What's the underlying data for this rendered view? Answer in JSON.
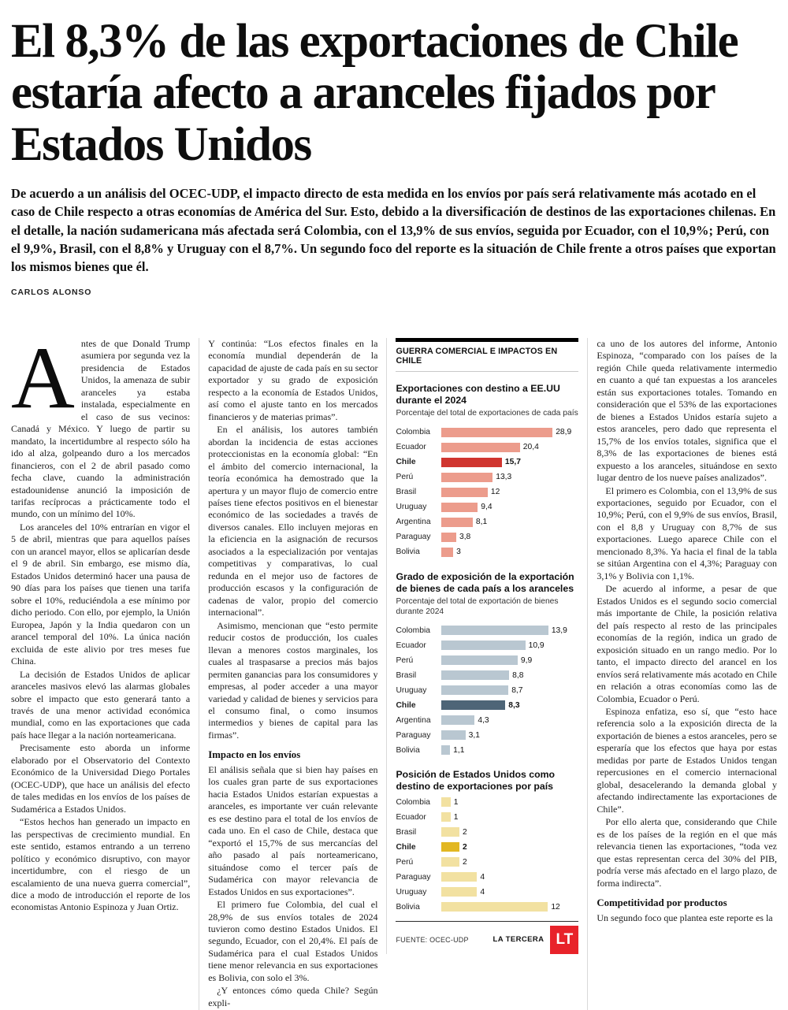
{
  "article": {
    "headline": "El 8,3% de las exportaciones de Chile estaría afecto a aranceles fijados por Estados Unidos",
    "lede": "De acuerdo a un análisis del OCEC-UDP, el impacto directo de esta medida en los envíos por país será relativamente más acotado en el caso de Chile respecto a otras economías de América del Sur. Esto, debido a la diversificación de destinos de las exportaciones chilenas. En el detalle, la nación sudamericana más afectada será Colombia, con el 13,9% de sus envíos, seguida por Ecuador, con el 10,9%; Perú, con el 9,9%, Brasil, con el 8,8% y Uruguay con el 8,7%. Un segundo foco del reporte es la situación de Chile frente a otros países que exportan los mismos bienes que él.",
    "byline": "CARLOS ALONSO",
    "col1": {
      "drop_cap": "A",
      "paragraphs": [
        "ntes de que Donald Trump asumiera por segunda vez la presidencia de Estados Unidos, la amenaza de subir aranceles ya estaba instalada, especialmente en el caso de sus vecinos: Canadá y México. Y luego de partir su mandato, la incertidumbre al respecto sólo ha ido al alza, golpeando duro a los mercados financieros, con el 2 de abril pasado como fecha clave, cuando la administración estadounidense anunció la imposición de tarifas recíprocas a prácticamente todo el mundo, con un mínimo del 10%.",
        "Los aranceles del 10% entrarían en vigor el 5 de abril, mientras que para aquellos países con un arancel mayor, ellos se aplicarían desde el 9 de abril. Sin embargo, ese mismo día, Estados Unidos determinó hacer una pausa de 90 días para los países que tienen una tarifa sobre el 10%, reduciéndola a ese mínimo por dicho periodo. Con ello, por ejemplo, la Unión Europea, Japón y la India quedaron con un arancel temporal del 10%. La única nación excluida de este alivio por tres meses fue China.",
        "La decisión de Estados Unidos de aplicar aranceles masivos elevó las alarmas globales sobre el impacto que esto generará tanto a través de una menor actividad económica mundial, como en las exportaciones que cada país hace llegar a la nación norteamericana.",
        "Precisamente esto aborda un informe elaborado por el Observatorio del Contexto Económico de la Universidad Diego Portales (OCEC-UDP), que hace un análisis del efecto de tales medidas en los envíos de los países de Sudamérica a Estados Unidos.",
        "“Estos hechos han generado un impacto en las perspectivas de crecimiento mundial. En este sentido, estamos entrando a un terreno político y económico disruptivo, con mayor incertidumbre, con el riesgo de un escalamiento de una nueva guerra comercial”, dice a modo de introducción el reporte de los economistas Antonio Espinoza y Juan Ortiz."
      ]
    },
    "col2": {
      "subhead": "Impacto en los envíos",
      "paragraphs": [
        "Y continúa: “Los efectos finales en la economía mundial dependerán de la capacidad de ajuste de cada país en su sector exportador y su grado de exposición respecto a la economía de Estados Unidos, así como el ajuste tanto en los mercados financieros y de materias primas”.",
        "En el análisis, los autores también abordan la incidencia de estas acciones proteccionistas en la economía global: “En el ámbito del comercio internacional, la teoría económica ha demostrado que la apertura y un mayor flujo de comercio entre países tiene efectos positivos en el bienestar económico de las sociedades a través de diversos canales. Ello incluyen mejoras en la eficiencia en la asignación de recursos asociados a la especialización por ventajas competitivas y comparativas, lo cual redunda en el mejor uso de factores de producción escasos y la configuración de cadenas de valor, propio del comercio internacional”.",
        "Asimismo, mencionan que “esto permite reducir costos de producción, los cuales llevan a menores costos marginales, los cuales al traspasarse a precios más bajos permiten ganancias para los consumidores y empresas, al poder acceder a una mayor variedad y calidad de bienes y servicios para el consumo final, o como insumos intermedios y bienes de capital para las firmas”.",
        "El análisis señala que si bien hay países en los cuales gran parte de sus exportaciones hacia Estados Unidos estarían expuestas a aranceles, es importante ver cuán relevante es ese destino para el total de los envíos de cada uno. En el caso de Chile, destaca que “exportó el 15,7% de sus mercancías del año pasado al país norteamericano, situándose como el tercer país de Sudamérica con mayor relevancia de Estados Unidos en sus exportaciones”.",
        "El primero fue Colombia, del cual el 28,9% de sus envíos totales de 2024 tuvieron como destino Estados Unidos. El segundo, Ecuador, con el 20,4%. El país de Sudamérica para el cual Estados Unidos tiene menor relevancia en sus exportaciones es Bolivia, con solo el 3%.",
        "¿Y entonces cómo queda Chile? Según expli-"
      ]
    },
    "col3": {
      "subhead": "Competitividad por productos",
      "paragraphs": [
        "ca uno de los autores del informe, Antonio Espinoza, “comparado con los países de la región Chile queda relativamente intermedio en cuanto a qué tan expuestas a los aranceles están sus exportaciones totales. Tomando en consideración que el 53% de las exportaciones de bienes a Estados Unidos estaría sujeto a estos aranceles, pero dado que representa el 15,7% de los envíos totales, significa que el 8,3% de las exportaciones de bienes está expuesto a los aranceles, situándose en sexto lugar dentro de los nueve países analizados”.",
        "El primero es Colombia, con el 13,9% de sus exportaciones, seguido por Ecuador, con el 10,9%; Perú, con el 9,9% de sus envíos, Brasil, con el 8,8 y Uruguay con 8,7% de sus exportaciones. Luego aparece Chile con el mencionado 8,3%. Ya hacia el final de la tabla se sitúan Argentina con el 4,3%; Paraguay con 3,1% y Bolivia con 1,1%.",
        "De acuerdo al informe, a pesar de que Estados Unidos es el segundo socio comercial más importante de Chile, la posición relativa del país respecto al resto de las principales economías de la región, indica un grado de exposición situado en un rango medio. Por lo tanto, el impacto directo del arancel en los envíos será relativamente más acotado en Chile en relación a otras economías como las de Colombia, Ecuador o Perú.",
        "Espinoza enfatiza, eso sí, que “esto hace referencia solo a la exposición directa de la exportación de bienes a estos aranceles, pero se esperaría que los efectos que haya por estas medidas por parte de Estados Unidos tengan repercusiones en el comercio internacional global, desacelerando la demanda global y afectando indirectamente las exportaciones de Chile”.",
        "Por ello alerta que, considerando que Chile es de los países de la región en el que más relevancia tienen las exportaciones, “toda vez que estas representan cerca del 30% del PIB, podría verse más afectado en el largo plazo, de forma indirecta”.",
        "Un segundo foco que plantea este reporte es la"
      ]
    }
  },
  "infographic": {
    "kicker": "GUERRA COMERCIAL E IMPACTOS EN CHILE",
    "source_label": "FUENTE: OCEC-UDP",
    "brand": "LA TERCERA",
    "logo_text": "LT",
    "logo_color": "#e8232a"
  },
  "chart_data": [
    {
      "type": "bar",
      "orientation": "horizontal",
      "title": "Exportaciones con destino a EE.UU durante el 2024",
      "subtitle": "Porcentaje del total de exportaciones de cada país",
      "categories": [
        "Colombia",
        "Ecuador",
        "Chile",
        "Perú",
        "Brasil",
        "Uruguay",
        "Argentina",
        "Paraguay",
        "Bolivia"
      ],
      "values": [
        28.9,
        20.4,
        15.7,
        13.3,
        12,
        9.4,
        8.1,
        3.8,
        3
      ],
      "value_labels": [
        "28,9",
        "20,4",
        "15,7",
        "13,3",
        "12",
        "9,4",
        "8,1",
        "3,8",
        "3"
      ],
      "highlight_category": "Chile",
      "bar_color": "#ec9c8c",
      "highlight_color": "#d0352f",
      "xlim": [
        0,
        30
      ]
    },
    {
      "type": "bar",
      "orientation": "horizontal",
      "title": "Grado de exposición de la exportación de bienes de cada país a los aranceles",
      "subtitle": "Porcentaje del total de exportación de bienes durante 2024",
      "categories": [
        "Colombia",
        "Ecuador",
        "Perú",
        "Brasil",
        "Uruguay",
        "Chile",
        "Argentina",
        "Paraguay",
        "Bolivia"
      ],
      "values": [
        13.9,
        10.9,
        9.9,
        8.8,
        8.7,
        8.3,
        4.3,
        3.1,
        1.1
      ],
      "value_labels": [
        "13,9",
        "10,9",
        "9,9",
        "8,8",
        "8,7",
        "8,3",
        "4,3",
        "3,1",
        "1,1"
      ],
      "highlight_category": "Chile",
      "bar_color": "#b9c7d1",
      "highlight_color": "#4e6577",
      "xlim": [
        0,
        15
      ]
    },
    {
      "type": "bar",
      "orientation": "horizontal",
      "title": "Posición de Estados Unidos como destino de exportaciones por país",
      "subtitle": "",
      "categories": [
        "Colombia",
        "Ecuador",
        "Brasil",
        "Chile",
        "Perú",
        "Paraguay",
        "Uruguay",
        "Bolivia"
      ],
      "values": [
        1,
        1,
        2,
        2,
        2,
        4,
        4,
        12
      ],
      "value_labels": [
        "1",
        "1",
        "2",
        "2",
        "2",
        "4",
        "4",
        "12"
      ],
      "highlight_category": "Chile",
      "bar_color": "#f2e1a1",
      "highlight_color": "#e2b722",
      "xlim": [
        0,
        13
      ]
    }
  ]
}
